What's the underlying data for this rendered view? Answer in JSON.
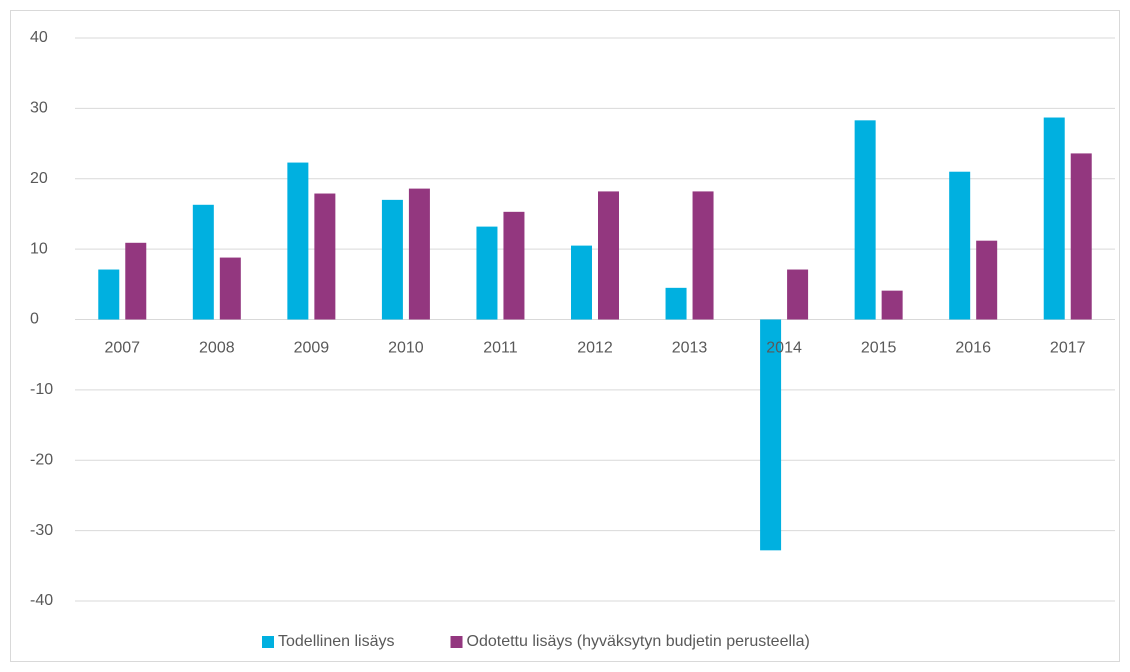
{
  "chart_data": {
    "type": "bar",
    "categories": [
      "2007",
      "2008",
      "2009",
      "2010",
      "2011",
      "2012",
      "2013",
      "2014",
      "2015",
      "2016",
      "2017"
    ],
    "series": [
      {
        "name": "Todellinen lisäys",
        "color": "#00b0e0",
        "values": [
          7.1,
          16.3,
          22.3,
          17.0,
          13.2,
          10.5,
          4.5,
          -32.8,
          28.3,
          21.0,
          28.7
        ]
      },
      {
        "name": "Odotettu lisäys (hyväksytyn budjetin perusteella)",
        "color": "#93377f",
        "values": [
          10.9,
          8.8,
          17.9,
          18.6,
          15.3,
          18.2,
          18.2,
          7.1,
          4.1,
          11.2,
          23.6
        ]
      }
    ],
    "ylim": [
      -40,
      40
    ],
    "yticks": [
      -40,
      -30,
      -20,
      -10,
      0,
      10,
      20,
      30,
      40
    ],
    "grid": true,
    "legend": "bottom"
  }
}
